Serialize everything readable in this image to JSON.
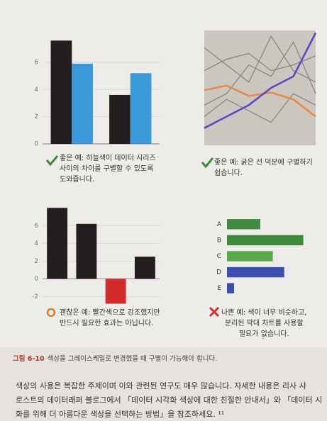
{
  "chart_data": [
    {
      "type": "bar",
      "categories": [
        null,
        null
      ],
      "series": [
        {
          "color": "#231f20",
          "values": [
            7.6,
            3.6
          ]
        },
        {
          "color": "#3a9ad9",
          "values": [
            5.9,
            5.2
          ]
        }
      ],
      "ylim": [
        0,
        8.5
      ],
      "yticks": [
        0,
        2,
        4,
        6
      ],
      "grid": true,
      "caption": [
        "좋은 예: 하늘색이 데이터 시리즈",
        "사이의 차이를 구별할 수 있도록",
        "도와줍니다."
      ]
    },
    {
      "type": "line",
      "categories": [
        null,
        null,
        null,
        null,
        null,
        null
      ],
      "background": "#cbc6c0",
      "series": [
        {
          "color": "#8a837d",
          "values": [
            6.5,
            7.5,
            8.0,
            6.5,
            7.0,
            7.8
          ]
        },
        {
          "color": "#8a837d",
          "values": [
            8.5,
            7.0,
            5.5,
            9.5,
            6.5,
            5.5
          ]
        },
        {
          "color": "#8a837d",
          "values": [
            3.5,
            4.5,
            7.0,
            6.0,
            9.0,
            4.5
          ]
        },
        {
          "color": "#8a837d",
          "values": [
            2.5,
            4.0,
            3.0,
            2.0,
            4.5,
            3.5
          ]
        },
        {
          "color": "#e88a4a",
          "highlight": true,
          "values": [
            4.8,
            5.2,
            4.3,
            4.6,
            4.0,
            2.5
          ]
        },
        {
          "color": "#5a4cc0",
          "highlight": true,
          "values": [
            1.5,
            2.5,
            3.5,
            5.0,
            6.0,
            9.8
          ]
        }
      ],
      "ylim": [
        0,
        10
      ],
      "caption": [
        "좋은 예: 굵은 선 덕분에 구별하기",
        "쉽습니다."
      ]
    },
    {
      "type": "bar",
      "categories": [
        null,
        null,
        null,
        null
      ],
      "values": [
        8.0,
        6.2,
        -2.8,
        2.5
      ],
      "colors": [
        "#231f20",
        "#231f20",
        "#d42a2a",
        "#231f20"
      ],
      "ylim": [
        -3,
        8.5
      ],
      "yticks": [
        -2,
        0,
        2,
        4,
        6
      ],
      "grid": true,
      "caption": [
        "괜찮은 예: 빨간색으로 강조했지만",
        "반드시 필요한 효과는 아닙니다."
      ]
    },
    {
      "type": "barh",
      "categories": [
        "A",
        "B",
        "C",
        "D",
        "E"
      ],
      "values": [
        3.05,
        7.0,
        4.2,
        5.25,
        0.65
      ],
      "colors": [
        "#3f8a3f",
        "#3f8a3f",
        "#5aa84a",
        "#3b4fb0",
        "#3b4fb0"
      ],
      "xlim": [
        0,
        8
      ],
      "caption": [
        "나쁜 예: 색이 너무 비슷하고,",
        "분리된 막대 차트를 사용할",
        "필요가 없습니다."
      ]
    }
  ],
  "figure_label": "그림 6-10",
  "figure_caption": "색상을 그레이스케일로 변경했을 때 구별이 가능해야 합니다.",
  "body": [
    "색상의 사용은 복잡한 주제이며 이와 관련된 연구도 매우 많습니다. 자세한 내용은 리사 샤",
    "로스트의 데이터래퍼 블로그에서 「데이터 시각화 색상에 대한 친절한 안내서」와 「데이터 시",
    "화를 위해 더 아름다운 색상을 선택하는 방법」을 참조하세요. ¹¹"
  ]
}
